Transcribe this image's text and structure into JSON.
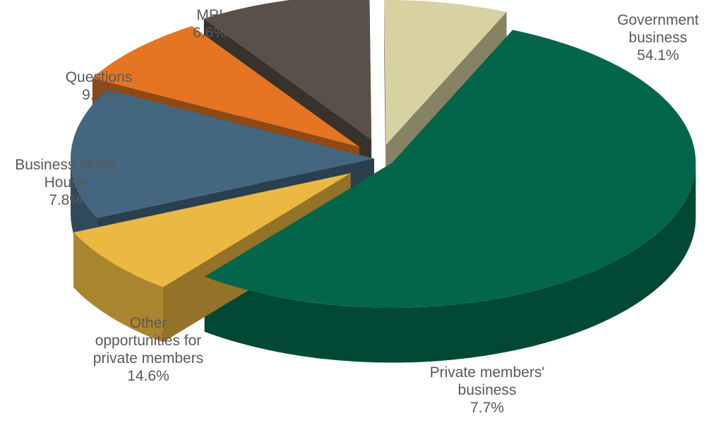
{
  "chart_data": {
    "type": "pie",
    "style": "3d-exploded",
    "slices": [
      {
        "key": "government",
        "lines": [
          "Government",
          "business"
        ],
        "value": 54.1,
        "value_label": "54.1%",
        "color": "#03664a"
      },
      {
        "key": "private",
        "lines": [
          "Private members'",
          "business"
        ],
        "value": 7.7,
        "value_label": "7.7%",
        "color": "#ebb941"
      },
      {
        "key": "other",
        "lines": [
          "Other",
          "opportunities for",
          "private members"
        ],
        "value": 14.6,
        "value_label": "14.6%",
        "color": "#44677f"
      },
      {
        "key": "house",
        "lines": [
          "Business of the",
          "House"
        ],
        "value": 7.8,
        "value_label": "7.8%",
        "color": "#e57522"
      },
      {
        "key": "questions",
        "lines": [
          "Questions"
        ],
        "value": 9.2,
        "value_label": "9.2%",
        "color": "#5b5049"
      },
      {
        "key": "mpi",
        "lines": [
          "MPI"
        ],
        "value": 6.6,
        "value_label": "6.6%",
        "color": "#d8d1a2"
      }
    ],
    "legend": "none"
  }
}
